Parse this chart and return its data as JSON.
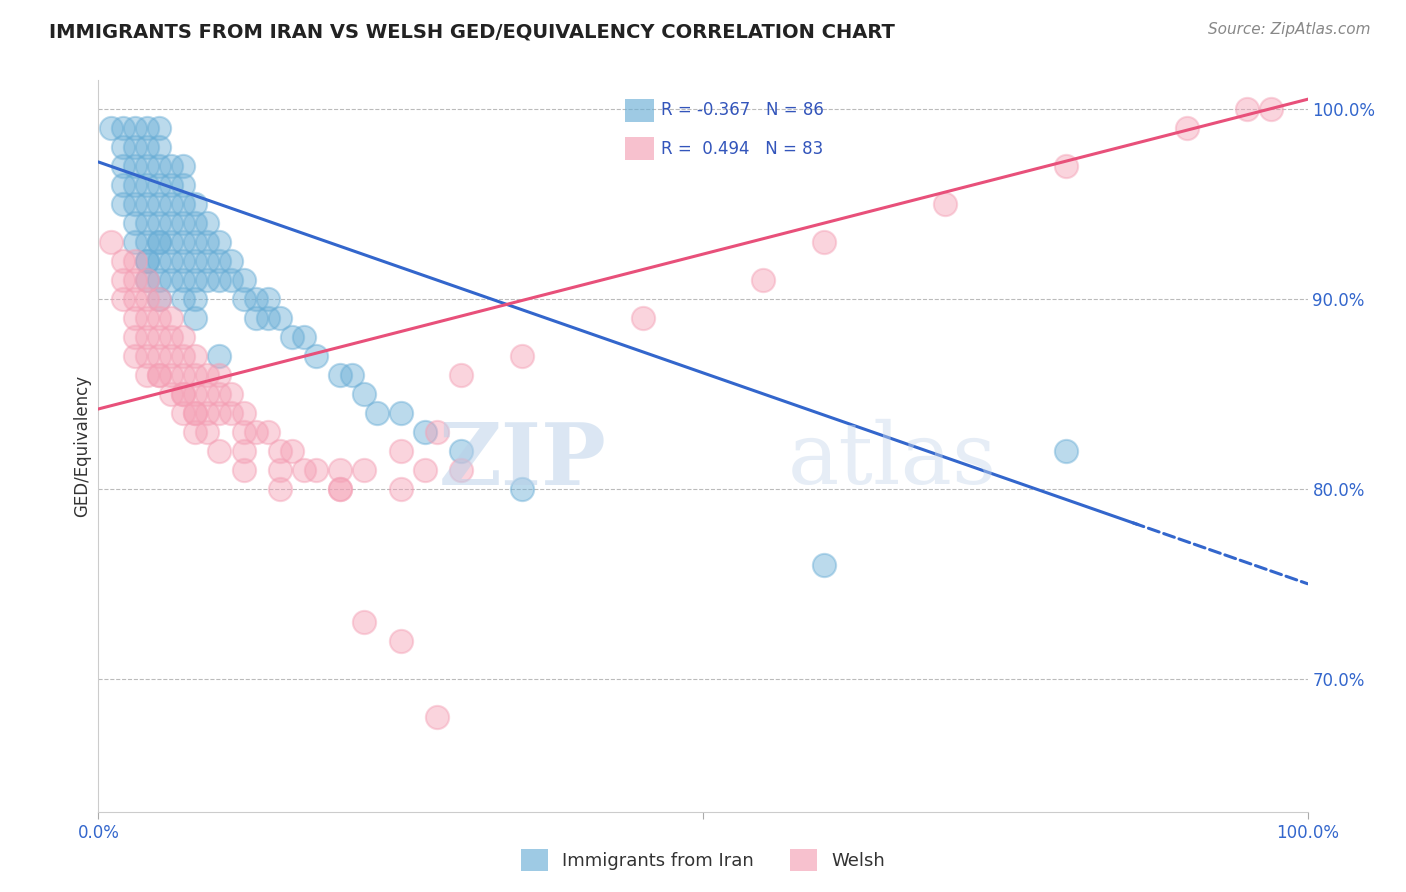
{
  "title": "IMMIGRANTS FROM IRAN VS WELSH GED/EQUIVALENCY CORRELATION CHART",
  "source": "Source: ZipAtlas.com",
  "ylabel": "GED/Equivalency",
  "legend_labels": [
    "Immigrants from Iran",
    "Welsh"
  ],
  "blue_R": -0.367,
  "blue_N": 86,
  "pink_R": 0.494,
  "pink_N": 83,
  "blue_color": "#6aaed6",
  "pink_color": "#f4a0b5",
  "blue_line_color": "#3366cc",
  "pink_line_color": "#e8507a",
  "watermark_zip": "ZIP",
  "watermark_atlas": "atlas",
  "xlim": [
    0.0,
    1.0
  ],
  "ylim": [
    0.63,
    1.015
  ],
  "yticks": [
    0.7,
    0.8,
    0.9,
    1.0
  ],
  "ytick_labels": [
    "70.0%",
    "80.0%",
    "90.0%",
    "100.0%"
  ],
  "xtick_labels": [
    "0.0%",
    "100.0%"
  ],
  "blue_line_x0": 0.0,
  "blue_line_y0": 0.972,
  "blue_line_x1": 1.0,
  "blue_line_y1": 0.75,
  "blue_line_solid_end": 0.86,
  "pink_line_x0": 0.0,
  "pink_line_y0": 0.842,
  "pink_line_x1": 1.0,
  "pink_line_y1": 1.005,
  "blue_x": [
    0.01,
    0.02,
    0.02,
    0.02,
    0.02,
    0.03,
    0.03,
    0.03,
    0.03,
    0.03,
    0.03,
    0.03,
    0.04,
    0.04,
    0.04,
    0.04,
    0.04,
    0.04,
    0.04,
    0.04,
    0.04,
    0.05,
    0.05,
    0.05,
    0.05,
    0.05,
    0.05,
    0.05,
    0.05,
    0.05,
    0.05,
    0.06,
    0.06,
    0.06,
    0.06,
    0.06,
    0.06,
    0.07,
    0.07,
    0.07,
    0.07,
    0.07,
    0.07,
    0.07,
    0.08,
    0.08,
    0.08,
    0.08,
    0.08,
    0.08,
    0.09,
    0.09,
    0.09,
    0.09,
    0.1,
    0.1,
    0.1,
    0.11,
    0.11,
    0.12,
    0.12,
    0.13,
    0.13,
    0.14,
    0.14,
    0.15,
    0.16,
    0.17,
    0.18,
    0.2,
    0.21,
    0.22,
    0.23,
    0.25,
    0.27,
    0.3,
    0.35,
    0.02,
    0.04,
    0.05,
    0.06,
    0.07,
    0.08,
    0.1,
    0.6,
    0.8
  ],
  "blue_y": [
    0.99,
    0.99,
    0.98,
    0.97,
    0.96,
    0.99,
    0.98,
    0.97,
    0.96,
    0.95,
    0.94,
    0.93,
    0.99,
    0.98,
    0.97,
    0.96,
    0.95,
    0.94,
    0.93,
    0.92,
    0.91,
    0.99,
    0.98,
    0.97,
    0.96,
    0.95,
    0.94,
    0.93,
    0.92,
    0.91,
    0.9,
    0.97,
    0.96,
    0.95,
    0.94,
    0.93,
    0.92,
    0.97,
    0.96,
    0.95,
    0.94,
    0.93,
    0.92,
    0.91,
    0.95,
    0.94,
    0.93,
    0.92,
    0.91,
    0.9,
    0.94,
    0.93,
    0.92,
    0.91,
    0.93,
    0.92,
    0.91,
    0.92,
    0.91,
    0.91,
    0.9,
    0.9,
    0.89,
    0.9,
    0.89,
    0.89,
    0.88,
    0.88,
    0.87,
    0.86,
    0.86,
    0.85,
    0.84,
    0.84,
    0.83,
    0.82,
    0.8,
    0.95,
    0.92,
    0.93,
    0.91,
    0.9,
    0.89,
    0.87,
    0.76,
    0.82
  ],
  "pink_x": [
    0.01,
    0.02,
    0.02,
    0.02,
    0.03,
    0.03,
    0.03,
    0.03,
    0.04,
    0.04,
    0.04,
    0.04,
    0.04,
    0.05,
    0.05,
    0.05,
    0.05,
    0.05,
    0.06,
    0.06,
    0.06,
    0.06,
    0.07,
    0.07,
    0.07,
    0.07,
    0.08,
    0.08,
    0.08,
    0.08,
    0.09,
    0.09,
    0.09,
    0.1,
    0.1,
    0.1,
    0.11,
    0.11,
    0.12,
    0.12,
    0.13,
    0.14,
    0.15,
    0.16,
    0.17,
    0.18,
    0.2,
    0.22,
    0.25,
    0.28,
    0.03,
    0.05,
    0.07,
    0.08,
    0.09,
    0.12,
    0.15,
    0.2,
    0.25,
    0.3,
    0.03,
    0.04,
    0.06,
    0.07,
    0.08,
    0.1,
    0.12,
    0.15,
    0.2,
    0.27,
    0.3,
    0.35,
    0.45,
    0.55,
    0.6,
    0.7,
    0.8,
    0.9,
    0.95,
    0.97,
    0.22,
    0.25,
    0.28
  ],
  "pink_y": [
    0.93,
    0.92,
    0.91,
    0.9,
    0.92,
    0.91,
    0.9,
    0.89,
    0.91,
    0.9,
    0.89,
    0.88,
    0.87,
    0.9,
    0.89,
    0.88,
    0.87,
    0.86,
    0.89,
    0.88,
    0.87,
    0.86,
    0.88,
    0.87,
    0.86,
    0.85,
    0.87,
    0.86,
    0.85,
    0.84,
    0.86,
    0.85,
    0.84,
    0.86,
    0.85,
    0.84,
    0.85,
    0.84,
    0.84,
    0.83,
    0.83,
    0.83,
    0.82,
    0.82,
    0.81,
    0.81,
    0.81,
    0.81,
    0.82,
    0.83,
    0.88,
    0.86,
    0.85,
    0.84,
    0.83,
    0.82,
    0.81,
    0.8,
    0.8,
    0.81,
    0.87,
    0.86,
    0.85,
    0.84,
    0.83,
    0.82,
    0.81,
    0.8,
    0.8,
    0.81,
    0.86,
    0.87,
    0.89,
    0.91,
    0.93,
    0.95,
    0.97,
    0.99,
    1.0,
    1.0,
    0.73,
    0.72,
    0.68
  ]
}
